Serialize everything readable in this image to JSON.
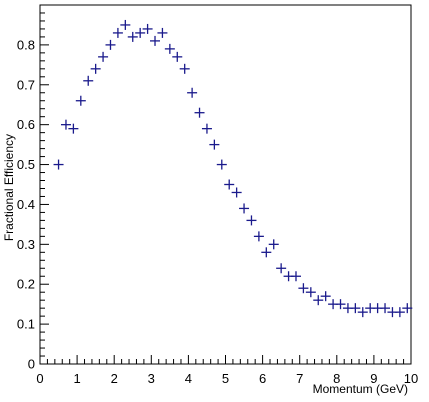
{
  "chart_data": {
    "type": "scatter",
    "title": "",
    "xlabel": "Momentum (GeV)",
    "ylabel": "Fractional Efficiency",
    "xlim": [
      0,
      10
    ],
    "ylim": [
      0,
      0.9
    ],
    "grid": false,
    "legend": "none",
    "x_ticks": [
      "0",
      "1",
      "2",
      "3",
      "4",
      "5",
      "6",
      "7",
      "8",
      "9",
      "10"
    ],
    "y_ticks": [
      "0",
      "0.1",
      "0.2",
      "0.3",
      "0.4",
      "0.5",
      "0.6",
      "0.7",
      "0.8"
    ],
    "marker": "cross",
    "color": "#1a1a8c",
    "series": [
      {
        "x": [
          0.5,
          0.7,
          0.9,
          1.1,
          1.3,
          1.5,
          1.7,
          1.9,
          2.1,
          2.3,
          2.5,
          2.7,
          2.9,
          3.1,
          3.3,
          3.5,
          3.7,
          3.9,
          4.1,
          4.3,
          4.5,
          4.7,
          4.9,
          5.1,
          5.3,
          5.5,
          5.7,
          5.9,
          6.1,
          6.3,
          6.5,
          6.7,
          6.9,
          7.1,
          7.3,
          7.5,
          7.7,
          7.9,
          8.1,
          8.3,
          8.5,
          8.7,
          8.9,
          9.1,
          9.3,
          9.5,
          9.7,
          9.9
        ],
        "y": [
          0.5,
          0.6,
          0.59,
          0.66,
          0.71,
          0.74,
          0.77,
          0.8,
          0.83,
          0.85,
          0.82,
          0.83,
          0.84,
          0.81,
          0.83,
          0.79,
          0.77,
          0.74,
          0.68,
          0.63,
          0.59,
          0.55,
          0.5,
          0.45,
          0.43,
          0.39,
          0.36,
          0.32,
          0.28,
          0.3,
          0.24,
          0.22,
          0.22,
          0.19,
          0.18,
          0.16,
          0.17,
          0.15,
          0.15,
          0.14,
          0.14,
          0.13,
          0.14,
          0.14,
          0.14,
          0.13,
          0.13,
          0.14
        ]
      }
    ]
  }
}
